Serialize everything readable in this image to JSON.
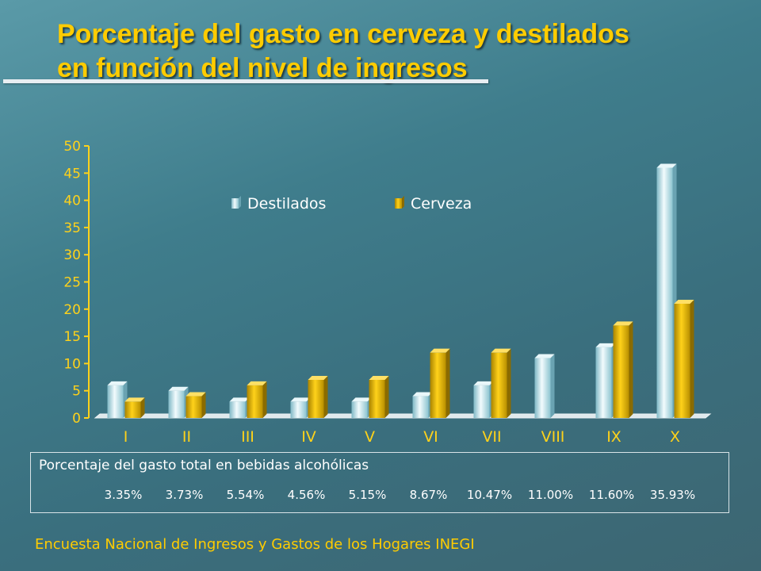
{
  "title_line1": "Porcentaje del gasto en cerveza y destilados",
  "title_line2": "en función del nivel de ingresos",
  "chart_data": {
    "type": "bar",
    "categories": [
      "I",
      "II",
      "III",
      "IV",
      "V",
      "VI",
      "VII",
      "VIII",
      "IX",
      "X"
    ],
    "series": [
      {
        "name": "Destilados",
        "color": "#bfe6ee",
        "values": [
          6,
          5,
          3,
          3,
          3,
          4,
          6,
          11,
          13,
          46
        ]
      },
      {
        "name": "Cerveza",
        "color": "#e8b800",
        "values": [
          3,
          4,
          6,
          7,
          7,
          12,
          12,
          0,
          17,
          21
        ]
      }
    ],
    "ylim": [
      0,
      50
    ],
    "yticks": [
      0,
      5,
      10,
      15,
      20,
      25,
      30,
      35,
      40,
      45,
      50
    ],
    "legend_position": "top-center",
    "grid": false
  },
  "table": {
    "label": "Porcentaje del gasto total en bebidas alcohólicas",
    "values": [
      "3.35%",
      "3.73%",
      "5.54%",
      "4.56%",
      "5.15%",
      "8.67%",
      "10.47%",
      "11.00%",
      "11.60%",
      "35.93%"
    ]
  },
  "source": "Encuesta Nacional de Ingresos y Gastos de los Hogares INEGI"
}
